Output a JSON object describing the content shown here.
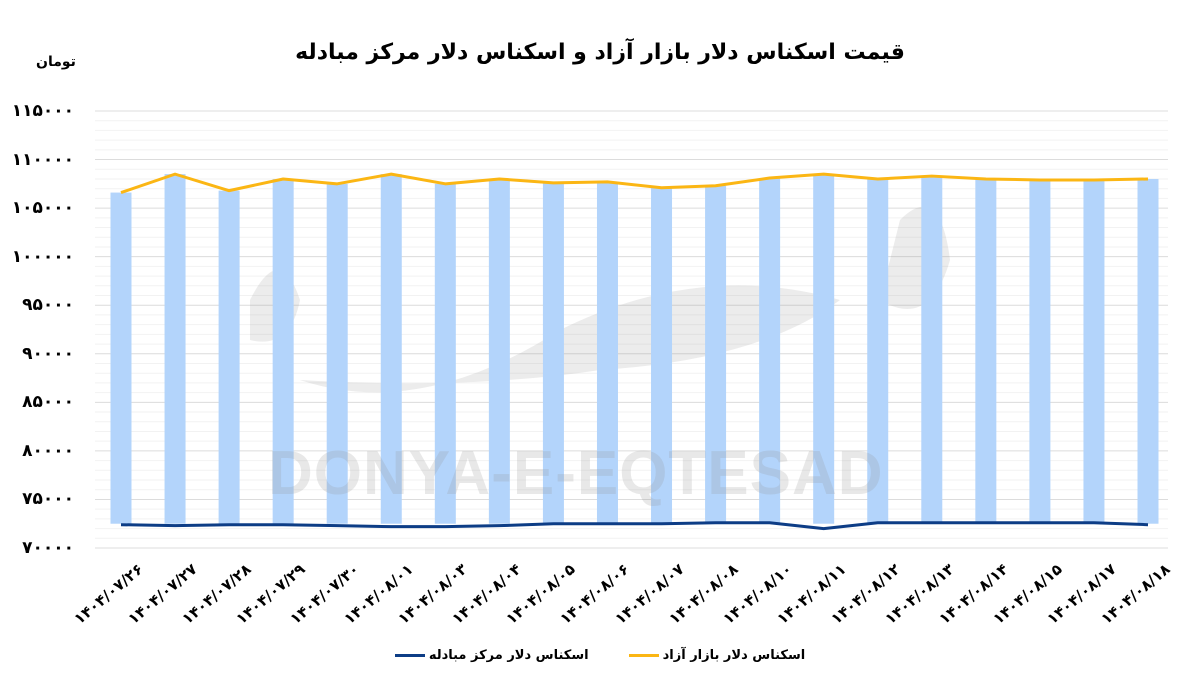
{
  "title": "قیمت اسکناس دلار بازار آزاد و اسکناس دلار مرکز مبادله",
  "unit_label": "تومان",
  "watermark": "DONYA-E-EQTESAD",
  "colors": {
    "bar": "#b3d4fb",
    "free_market_line": "#fbb614",
    "exchange_center_line": "#0d3d86",
    "grid": "#e3e3e3"
  },
  "y_ticks": [
    "۱۱۵۰۰۰",
    "۱۱۰۰۰۰",
    "۱۰۵۰۰۰",
    "۱۰۰۰۰۰",
    "۹۵۰۰۰",
    "۹۰۰۰۰",
    "۸۵۰۰۰",
    "۸۰۰۰۰",
    "۷۵۰۰۰",
    "۷۰۰۰۰"
  ],
  "legend": [
    {
      "label": "اسکناس دلار بازار آزاد",
      "color": "#fbb614"
    },
    {
      "label": "اسکناس دلار مرکز مبادله",
      "color": "#0d3d86"
    }
  ],
  "chart_data": {
    "type": "line",
    "title": "قیمت اسکناس دلار بازار آزاد و اسکناس دلار مرکز مبادله",
    "xlabel": "",
    "ylabel": "تومان",
    "ylim": [
      70000,
      115000
    ],
    "y_tick_step": 5000,
    "grid": true,
    "legend_position": "bottom",
    "categories": [
      "۱۴۰۴/۰۷/۲۶",
      "۱۴۰۴/۰۷/۲۷",
      "۱۴۰۴/۰۷/۲۸",
      "۱۴۰۴/۰۷/۲۹",
      "۱۴۰۴/۰۷/۳۰",
      "۱۴۰۴/۰۸/۰۱",
      "۱۴۰۴/۰۸/۰۳",
      "۱۴۰۴/۰۸/۰۴",
      "۱۴۰۴/۰۸/۰۵",
      "۱۴۰۴/۰۸/۰۶",
      "۱۴۰۴/۰۸/۰۷",
      "۱۴۰۴/۰۸/۰۸",
      "۱۴۰۴/۰۸/۱۰",
      "۱۴۰۴/۰۸/۱۱",
      "۱۴۰۴/۰۸/۱۲",
      "۱۴۰۴/۰۸/۱۳",
      "۱۴۰۴/۰۸/۱۴",
      "۱۴۰۴/۰۸/۱۵",
      "۱۴۰۴/۰۸/۱۷",
      "۱۴۰۴/۰۸/۱۸"
    ],
    "series": [
      {
        "name": "اسکناس دلار بازار آزاد",
        "type": "line",
        "color": "#fbb614",
        "values": [
          106600,
          108500,
          106800,
          108000,
          107500,
          108500,
          107500,
          108000,
          107600,
          107700,
          107100,
          107300,
          108100,
          108500,
          108000,
          108300,
          108000,
          107900,
          107900,
          108000
        ]
      },
      {
        "name": "اسکناس دلار مرکز مبادله",
        "type": "line",
        "color": "#0d3d86",
        "values": [
          72400,
          72300,
          72400,
          72400,
          72300,
          72200,
          72200,
          72300,
          72500,
          72500,
          72500,
          72600,
          72600,
          72000,
          72600,
          72600,
          72600,
          72600,
          72600,
          72400
        ]
      },
      {
        "name": "spread (floating bars between the two lines)",
        "type": "bar",
        "color": "#b3d4fb",
        "note": "bars span from exchange-center value up to free-market value"
      }
    ]
  }
}
